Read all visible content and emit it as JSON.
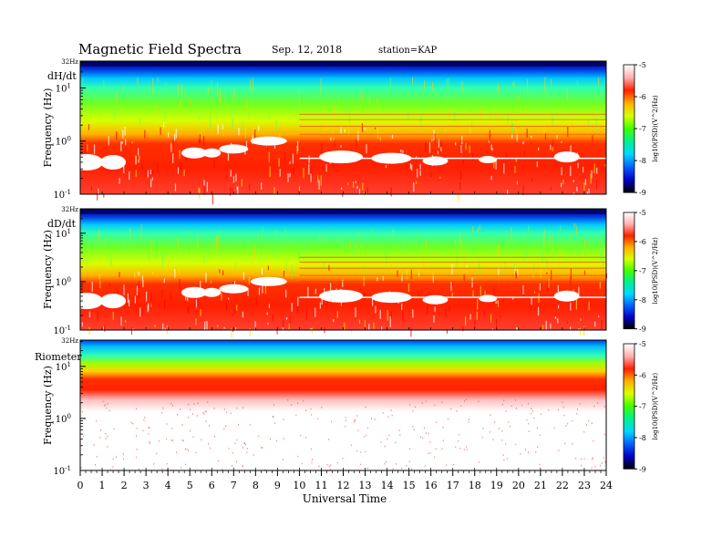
{
  "header": {
    "title": "Magnetic  Field  Spectra",
    "date": "Sep. 12, 2018",
    "station": "station=KAP"
  },
  "chart_data": {
    "type": "heatmap",
    "xlabel": "Universal Time",
    "xlim": [
      0,
      24
    ],
    "x_ticks": [
      "0",
      "1",
      "2",
      "3",
      "4",
      "5",
      "6",
      "7",
      "8",
      "9",
      "10",
      "11",
      "12",
      "13",
      "14",
      "15",
      "16",
      "17",
      "18",
      "19",
      "20",
      "21",
      "22",
      "23",
      "24"
    ],
    "colorbar": {
      "label": "log10(PSD)(V^2/Hz)",
      "range": [
        -9,
        -5
      ],
      "ticks": [
        "-5",
        "-6",
        "-7",
        "-8",
        "-9"
      ],
      "colors": [
        "#000000",
        "#0000c8",
        "#0060ff",
        "#00d8ff",
        "#00f090",
        "#40ff00",
        "#d8ff00",
        "#ffb000",
        "#ff2000",
        "#ffb0b0",
        "#ffffff"
      ]
    },
    "panels": [
      {
        "name": "dH/dt",
        "ylabel": "Frequency  (Hz)",
        "y_ticks": [
          "32Hz",
          "10^1",
          "10^0",
          "10^-1"
        ],
        "y_tick_values": [
          32,
          10,
          1,
          0.1
        ],
        "ylim": [
          0.1,
          32
        ]
      },
      {
        "name": "dD/dt",
        "ylabel": "Frequency  (Hz)",
        "y_ticks": [
          "32Hz",
          "10^1",
          "10^0",
          "10^-1"
        ],
        "y_tick_values": [
          32,
          10,
          1,
          0.1
        ],
        "ylim": [
          0.1,
          32
        ]
      },
      {
        "name": "Riometer",
        "ylabel": "Frequency  (Hz)",
        "y_ticks": [
          "32Hz",
          "10^1",
          "10^0",
          "10^-1"
        ],
        "y_tick_values": [
          32,
          10,
          1,
          0.1
        ],
        "ylim": [
          0.1,
          32
        ]
      }
    ]
  }
}
